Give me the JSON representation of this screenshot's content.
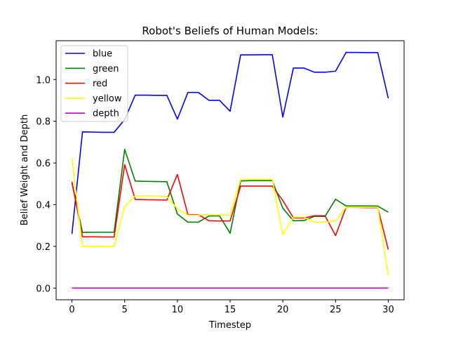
{
  "chart_data": {
    "type": "line",
    "title": "Robot's Beliefs of Human Models:",
    "xlabel": "Timestep",
    "ylabel": "Belief Weight and Depth",
    "xlim": [
      -1.5,
      31.5
    ],
    "ylim": [
      -0.056,
      1.186
    ],
    "xticks": [
      0,
      5,
      10,
      15,
      20,
      25,
      30
    ],
    "xtick_labels": [
      "0",
      "5",
      "10",
      "15",
      "20",
      "25",
      "30"
    ],
    "yticks": [
      0.0,
      0.2,
      0.4,
      0.6,
      0.8,
      1.0
    ],
    "ytick_labels": [
      "0.0",
      "0.2",
      "0.4",
      "0.6",
      "0.8",
      "1.0"
    ],
    "grid": false,
    "legend_position": "upper-left",
    "x": [
      0,
      1,
      2,
      3,
      4,
      5,
      6,
      7,
      8,
      9,
      10,
      11,
      12,
      13,
      14,
      15,
      16,
      17,
      18,
      19,
      20,
      21,
      22,
      23,
      24,
      25,
      26,
      27,
      28,
      29,
      30
    ],
    "series": [
      {
        "name": "blue",
        "color": "#0000ff",
        "values": [
          0.26,
          0.749,
          0.748,
          0.747,
          0.747,
          0.808,
          0.925,
          0.925,
          0.924,
          0.924,
          0.81,
          0.938,
          0.938,
          0.9,
          0.9,
          0.848,
          1.118,
          1.118,
          1.119,
          1.119,
          0.82,
          1.055,
          1.055,
          1.035,
          1.035,
          1.04,
          1.13,
          1.13,
          1.129,
          1.129,
          0.91
        ]
      },
      {
        "name": "green",
        "color": "#008000",
        "values": [
          0.505,
          0.267,
          0.268,
          0.268,
          0.268,
          0.665,
          0.513,
          0.512,
          0.511,
          0.51,
          0.355,
          0.316,
          0.316,
          0.346,
          0.346,
          0.263,
          0.514,
          0.515,
          0.515,
          0.515,
          0.383,
          0.323,
          0.324,
          0.344,
          0.344,
          0.426,
          0.394,
          0.394,
          0.394,
          0.393,
          0.364
        ]
      },
      {
        "name": "red",
        "color": "#ff0000",
        "values": [
          0.51,
          0.246,
          0.246,
          0.245,
          0.245,
          0.592,
          0.425,
          0.424,
          0.423,
          0.422,
          0.545,
          0.352,
          0.352,
          0.323,
          0.322,
          0.322,
          0.489,
          0.489,
          0.489,
          0.489,
          0.42,
          0.337,
          0.336,
          0.347,
          0.347,
          0.252,
          0.387,
          0.387,
          0.386,
          0.386,
          0.185
        ]
      },
      {
        "name": "yellow",
        "color": "#ffff00",
        "values": [
          0.62,
          0.2,
          0.2,
          0.2,
          0.2,
          0.39,
          0.442,
          0.442,
          0.441,
          0.44,
          0.38,
          0.35,
          0.35,
          0.351,
          0.351,
          0.35,
          0.521,
          0.521,
          0.521,
          0.521,
          0.257,
          0.34,
          0.34,
          0.316,
          0.316,
          0.322,
          0.388,
          0.388,
          0.388,
          0.388,
          0.06
        ]
      },
      {
        "name": "depth",
        "color": "#bf00bf",
        "values": [
          0,
          0,
          0,
          0,
          0,
          0,
          0,
          0,
          0,
          0,
          0,
          0,
          0,
          0,
          0,
          0,
          0,
          0,
          0,
          0,
          0,
          0,
          0,
          0,
          0,
          0,
          0,
          0,
          0,
          0,
          0
        ]
      }
    ]
  }
}
